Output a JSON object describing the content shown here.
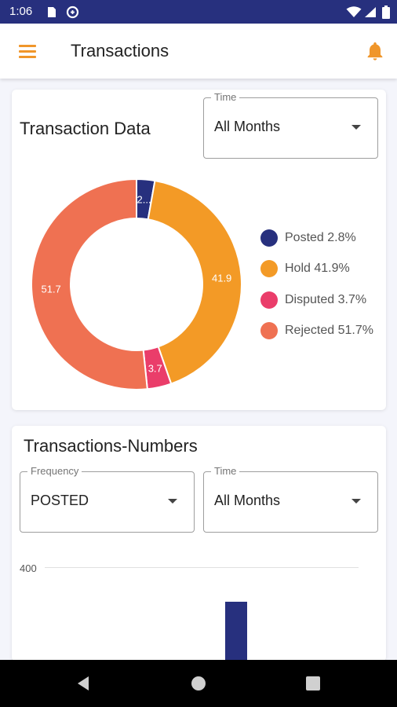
{
  "status_bar": {
    "time": "1:06",
    "icons": [
      "sim-card-icon",
      "data-saver-icon",
      "wifi-icon",
      "signal-icon",
      "battery-icon"
    ]
  },
  "app_bar": {
    "title": "Transactions",
    "icons": [
      "menu-icon",
      "bell-icon"
    ],
    "accent_color": "#f0962a"
  },
  "transaction_data_card": {
    "title": "Transaction Data",
    "time_dropdown": {
      "label": "Time",
      "value": "All Months"
    },
    "donut": {
      "slices": [
        {
          "name": "Posted",
          "value": 2.8,
          "label": "2...",
          "color": "#27307e"
        },
        {
          "name": "Hold",
          "value": 41.9,
          "label": "41.9",
          "color": "#f39a26"
        },
        {
          "name": "Disputed",
          "value": 3.7,
          "label": "3.7",
          "color": "#ea3d6a"
        },
        {
          "name": "Rejected",
          "value": 51.7,
          "label": "51.7",
          "color": "#ef7152"
        }
      ]
    },
    "legend": [
      {
        "text": "Posted 2.8%",
        "color": "#27307e"
      },
      {
        "text": "Hold 41.9%",
        "color": "#f39a26"
      },
      {
        "text": "Disputed  3.7%",
        "color": "#ea3d6a"
      },
      {
        "text": "Rejected 51.7%",
        "color": "#ef7152"
      }
    ]
  },
  "transactions_numbers_card": {
    "title": "Transactions-Numbers",
    "frequency_dropdown": {
      "label": "Frequency",
      "value": "POSTED"
    },
    "time_dropdown": {
      "label": "Time",
      "value": "All Months"
    },
    "chart": {
      "y_tick": "400",
      "bar_color": "#27307e"
    }
  },
  "nav_bar": {
    "buttons": [
      "back-icon",
      "home-icon",
      "recents-icon"
    ]
  }
}
